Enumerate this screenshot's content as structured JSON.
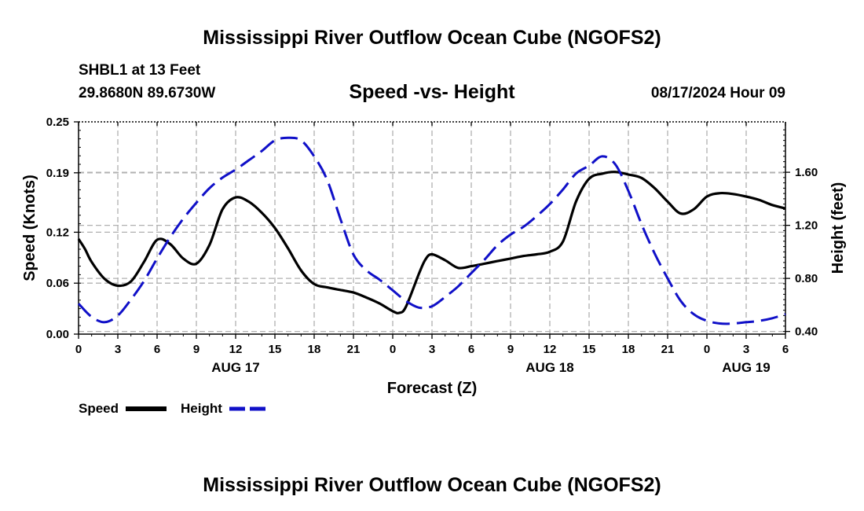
{
  "header": {
    "title": "Mississippi River Outflow Ocean Cube (NGOFS2)",
    "station": "SHBL1 at 13 Feet",
    "location": "29.8680N  89.6730W",
    "subtitle": "Speed -vs- Height",
    "datetime": "08/17/2024 Hour 09",
    "footer_title": "Mississippi River Outflow Ocean Cube (NGOFS2)"
  },
  "colors": {
    "speed": "#000000",
    "height": "#1010c8",
    "grid": "#b0b0b0"
  },
  "chart_data": {
    "type": "line",
    "xlabel": "Forecast (Z)",
    "ylabel_left": "Speed (Knots)",
    "ylabel_right": "Height (feet)",
    "x_range_hours": [
      0,
      54
    ],
    "x_ticks": [
      0,
      3,
      6,
      9,
      12,
      15,
      18,
      21,
      24,
      27,
      30,
      33,
      36,
      39,
      42,
      45,
      48,
      51,
      54
    ],
    "x_tick_labels": [
      "0",
      "3",
      "6",
      "9",
      "12",
      "15",
      "18",
      "21",
      "0",
      "3",
      "6",
      "9",
      "12",
      "15",
      "18",
      "21",
      "0",
      "3",
      "6"
    ],
    "date_labels": [
      {
        "hour": 12,
        "label": "AUG 17"
      },
      {
        "hour": 36,
        "label": "AUG 18"
      },
      {
        "hour": 51,
        "label": "AUG 19"
      }
    ],
    "ylim_left": [
      0,
      0.25
    ],
    "y_ticks_left": [
      0,
      0.06,
      0.12,
      0.19,
      0.25
    ],
    "y_tick_labels_left": [
      "0.00",
      "0.06",
      "0.12",
      "0.19",
      "0.25"
    ],
    "ylim_right": [
      0.38,
      1.98
    ],
    "y_ticks_right": [
      0.4,
      0.8,
      1.2,
      1.6
    ],
    "y_tick_labels_right": [
      "0.40",
      "0.80",
      "1.20",
      "1.60"
    ],
    "series": [
      {
        "name": "Speed",
        "axis": "left",
        "style": "solid",
        "x": [
          0,
          0.5,
          1,
          2,
          3,
          4,
          5,
          6,
          7,
          8,
          9,
          10,
          11,
          12,
          13,
          14,
          15,
          16,
          17,
          18,
          19,
          20,
          21,
          22,
          23,
          24,
          24.5,
          25,
          26,
          26.5,
          27,
          28,
          29,
          30,
          31,
          32,
          33,
          34,
          35,
          36,
          37,
          38,
          39,
          40,
          41,
          42,
          43,
          44,
          45,
          46,
          47,
          48,
          49,
          50,
          51,
          52,
          53,
          54
        ],
        "values": [
          0.112,
          0.1,
          0.085,
          0.065,
          0.057,
          0.062,
          0.085,
          0.111,
          0.106,
          0.089,
          0.083,
          0.105,
          0.147,
          0.161,
          0.156,
          0.143,
          0.125,
          0.101,
          0.075,
          0.059,
          0.055,
          0.052,
          0.049,
          0.043,
          0.036,
          0.027,
          0.025,
          0.032,
          0.071,
          0.088,
          0.094,
          0.087,
          0.078,
          0.08,
          0.083,
          0.086,
          0.089,
          0.092,
          0.094,
          0.097,
          0.109,
          0.156,
          0.183,
          0.189,
          0.191,
          0.188,
          0.184,
          0.172,
          0.156,
          0.142,
          0.147,
          0.162,
          0.166,
          0.165,
          0.162,
          0.158,
          0.152,
          0.148
        ]
      },
      {
        "name": "Height",
        "axis": "right",
        "style": "dashed",
        "x": [
          0,
          1,
          2,
          3,
          4,
          5,
          6,
          7,
          8,
          9,
          10,
          11,
          12,
          13,
          14,
          15,
          16,
          17,
          18,
          19,
          20,
          21,
          22,
          23,
          24,
          25,
          26,
          27,
          28,
          29,
          30,
          31,
          32,
          33,
          34,
          35,
          36,
          37,
          38,
          39,
          40,
          41,
          42,
          43,
          44,
          45,
          46,
          47,
          48,
          49,
          50,
          51,
          52,
          53,
          54
        ],
        "values": [
          0.61,
          0.51,
          0.47,
          0.52,
          0.64,
          0.78,
          0.95,
          1.11,
          1.25,
          1.37,
          1.48,
          1.56,
          1.62,
          1.69,
          1.76,
          1.84,
          1.86,
          1.84,
          1.72,
          1.54,
          1.25,
          0.98,
          0.86,
          0.79,
          0.71,
          0.63,
          0.58,
          0.59,
          0.66,
          0.74,
          0.84,
          0.94,
          1.05,
          1.13,
          1.19,
          1.27,
          1.36,
          1.47,
          1.59,
          1.65,
          1.72,
          1.66,
          1.46,
          1.21,
          0.99,
          0.8,
          0.63,
          0.53,
          0.48,
          0.46,
          0.46,
          0.47,
          0.48,
          0.5,
          0.53
        ]
      }
    ]
  },
  "legend": {
    "speed_label": "Speed",
    "height_label": "Height"
  }
}
